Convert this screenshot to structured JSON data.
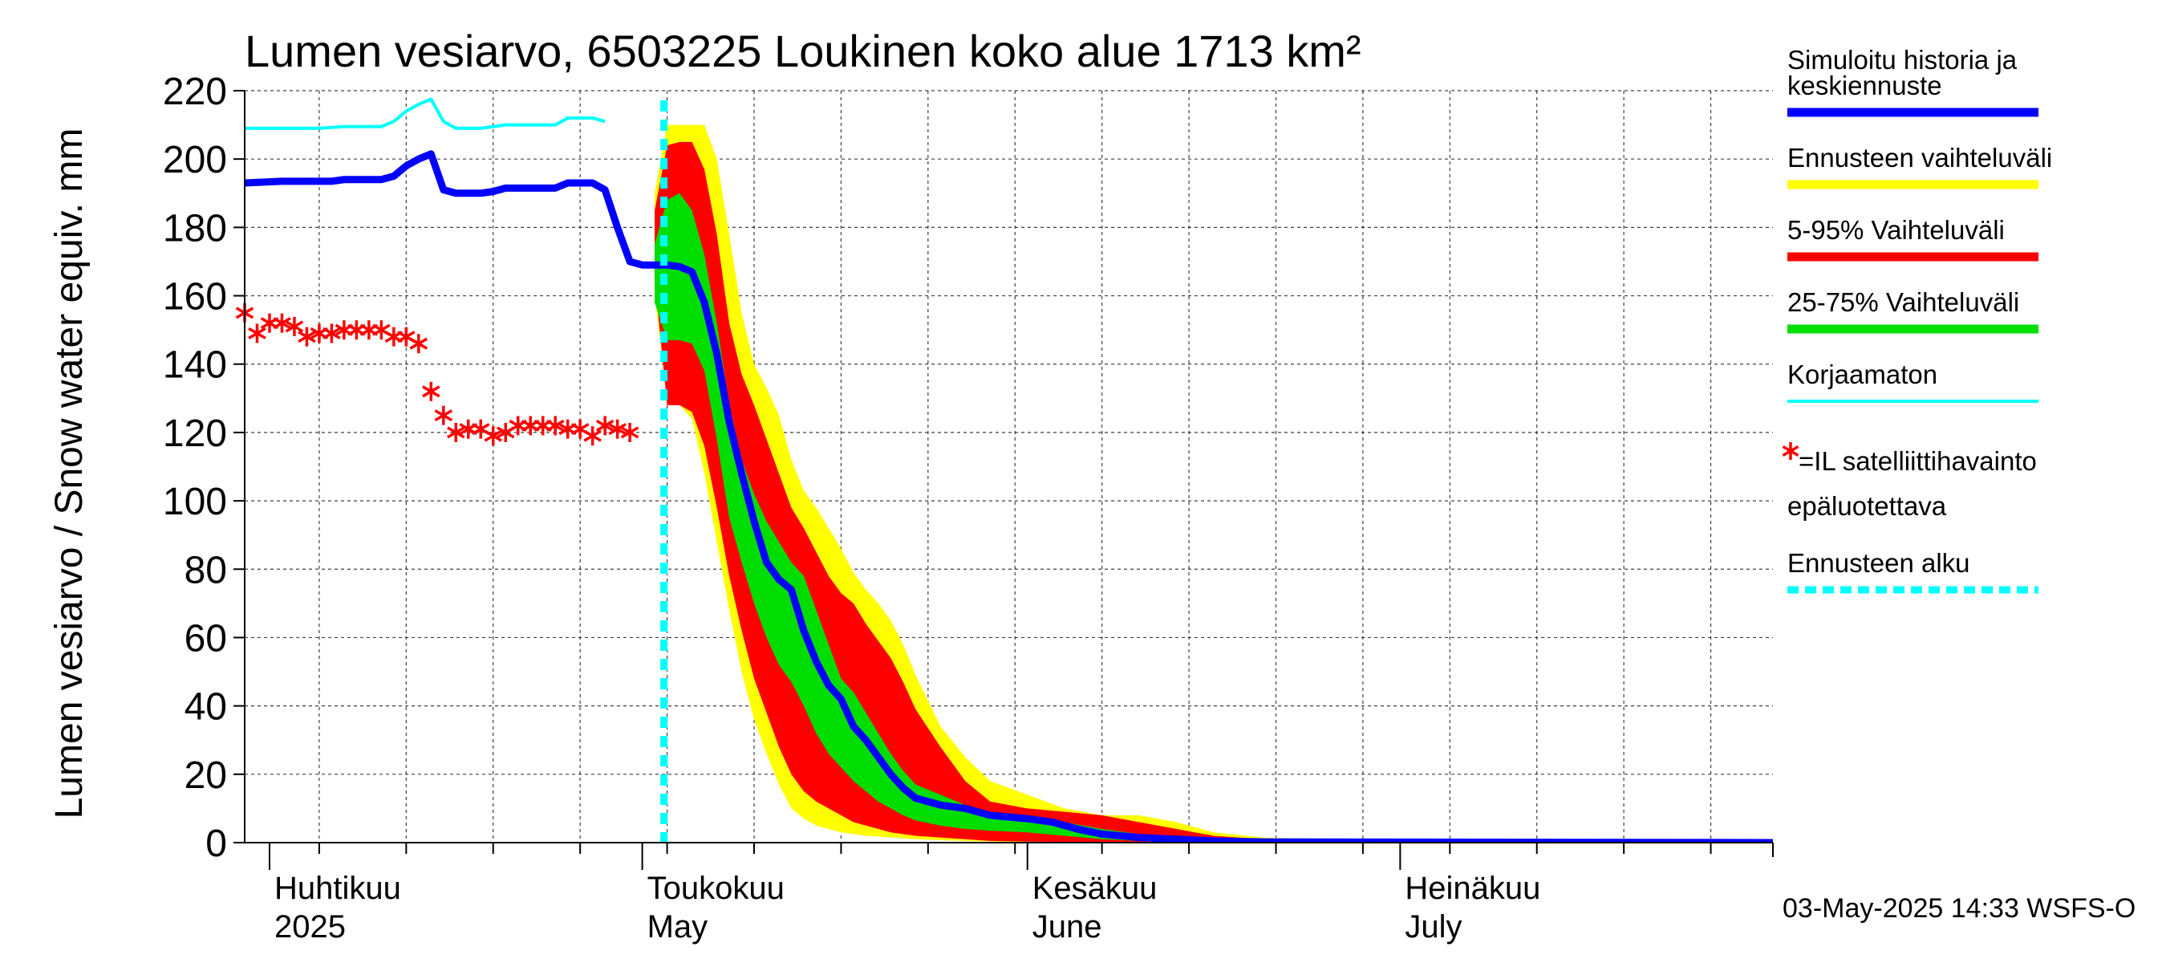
{
  "chart_data": {
    "type": "area",
    "title": "Lumen vesiarvo, 6503225 Loukinen koko alue 1713 km²",
    "ylabel": "Lumen vesiarvo / Snow water equiv.    mm",
    "ylim": [
      0,
      220
    ],
    "yticks": [
      0,
      20,
      40,
      60,
      80,
      100,
      120,
      140,
      160,
      180,
      200,
      220
    ],
    "xlim": [
      "2025-03-30",
      "2025-07-31"
    ],
    "grid": true,
    "month_labels": [
      {
        "date": "2025-04-01",
        "line1": "Huhtikuu",
        "line2": "2025"
      },
      {
        "date": "2025-05-01",
        "line1": "Toukokuu",
        "line2": "May"
      },
      {
        "date": "2025-06-01",
        "line1": "Kesäkuu",
        "line2": "June"
      },
      {
        "date": "2025-07-01",
        "line1": "Heinäkuu",
        "line2": "July"
      }
    ],
    "forecast_start": "2025-05-03",
    "timestamp": "03-May-2025 14:33 WSFS-O",
    "legend": {
      "placement": "right",
      "entries": [
        {
          "label1": "Simuloitu historia ja",
          "label2": "keskiennuste",
          "color": "#0000ff",
          "style": "thick-line"
        },
        {
          "label1": "Ennusteen vaihteluväli",
          "color": "#ffff00",
          "style": "thick-line"
        },
        {
          "label1": "5-95% Vaihteluväli",
          "color": "#ff0000",
          "style": "thick-line"
        },
        {
          "label1": "25-75% Vaihteluväli",
          "color": "#00dd00",
          "style": "thick-line"
        },
        {
          "label1": "Korjaamaton",
          "color": "#00ffff",
          "style": "thin-line"
        },
        {
          "label1": "=IL satelliittihavainto",
          "label2": "epäluotettava",
          "color": "#ff0000",
          "style": "star"
        },
        {
          "label1": "Ennusteen alku",
          "color": "#00ffff",
          "style": "dashed-line"
        }
      ]
    },
    "series": [
      {
        "name": "Simuloitu historia ja keskiennuste",
        "color": "#0000ff",
        "points": [
          [
            "2025-03-30",
            193
          ],
          [
            "2025-04-02",
            193.5
          ],
          [
            "2025-04-05",
            193.5
          ],
          [
            "2025-04-06",
            193.5
          ],
          [
            "2025-04-07",
            194
          ],
          [
            "2025-04-09",
            194
          ],
          [
            "2025-04-10",
            194
          ],
          [
            "2025-04-11",
            195
          ],
          [
            "2025-04-12",
            198
          ],
          [
            "2025-04-13",
            200
          ],
          [
            "2025-04-14",
            201.5
          ],
          [
            "2025-04-15",
            191
          ],
          [
            "2025-04-16",
            190
          ],
          [
            "2025-04-17",
            190
          ],
          [
            "2025-04-18",
            190
          ],
          [
            "2025-04-19",
            190.5
          ],
          [
            "2025-04-20",
            191.5
          ],
          [
            "2025-04-22",
            191.5
          ],
          [
            "2025-04-24",
            191.5
          ],
          [
            "2025-04-25",
            193
          ],
          [
            "2025-04-27",
            193
          ],
          [
            "2025-04-28",
            191
          ],
          [
            "2025-04-29",
            180
          ],
          [
            "2025-04-30",
            170
          ],
          [
            "2025-05-01",
            169
          ],
          [
            "2025-05-02",
            169
          ],
          [
            "2025-05-03",
            169
          ],
          [
            "2025-05-04",
            168.5
          ],
          [
            "2025-05-05",
            167
          ],
          [
            "2025-05-06",
            158
          ],
          [
            "2025-05-07",
            143
          ],
          [
            "2025-05-08",
            123
          ],
          [
            "2025-05-09",
            108
          ],
          [
            "2025-05-10",
            94
          ],
          [
            "2025-05-11",
            82
          ],
          [
            "2025-05-12",
            77
          ],
          [
            "2025-05-13",
            74
          ],
          [
            "2025-05-14",
            62
          ],
          [
            "2025-05-15",
            53
          ],
          [
            "2025-05-16",
            46
          ],
          [
            "2025-05-17",
            42
          ],
          [
            "2025-05-18",
            34
          ],
          [
            "2025-05-19",
            30
          ],
          [
            "2025-05-20",
            25
          ],
          [
            "2025-05-21",
            20
          ],
          [
            "2025-05-22",
            16
          ],
          [
            "2025-05-23",
            13
          ],
          [
            "2025-05-25",
            11
          ],
          [
            "2025-05-27",
            10
          ],
          [
            "2025-05-29",
            8
          ],
          [
            "2025-06-01",
            7
          ],
          [
            "2025-06-03",
            6
          ],
          [
            "2025-06-05",
            4
          ],
          [
            "2025-06-07",
            2.5
          ],
          [
            "2025-06-10",
            1.5
          ],
          [
            "2025-06-13",
            1
          ],
          [
            "2025-06-16",
            0.5
          ],
          [
            "2025-06-20",
            0.2
          ],
          [
            "2025-07-31",
            0
          ]
        ]
      },
      {
        "name": "Korjaamaton",
        "color": "#00ffff",
        "points": [
          [
            "2025-03-30",
            209
          ],
          [
            "2025-04-01",
            209
          ],
          [
            "2025-04-03",
            209
          ],
          [
            "2025-04-05",
            209
          ],
          [
            "2025-04-07",
            209.5
          ],
          [
            "2025-04-10",
            209.5
          ],
          [
            "2025-04-11",
            211
          ],
          [
            "2025-04-12",
            214
          ],
          [
            "2025-04-13",
            216
          ],
          [
            "2025-04-14",
            217.5
          ],
          [
            "2025-04-15",
            211
          ],
          [
            "2025-04-16",
            209
          ],
          [
            "2025-04-18",
            209
          ],
          [
            "2025-04-20",
            210
          ],
          [
            "2025-04-23",
            210
          ],
          [
            "2025-04-24",
            210
          ],
          [
            "2025-04-25",
            212
          ],
          [
            "2025-04-27",
            212
          ],
          [
            "2025-04-28",
            211
          ]
        ]
      }
    ],
    "bands": [
      {
        "name": "Ennusteen vaihteluväli",
        "color": "#ffff00",
        "x": [
          "2025-05-02",
          "2025-05-03",
          "2025-05-04",
          "2025-05-05",
          "2025-05-06",
          "2025-05-07",
          "2025-05-08",
          "2025-05-09",
          "2025-05-10",
          "2025-05-11",
          "2025-05-12",
          "2025-05-13",
          "2025-05-14",
          "2025-05-15",
          "2025-05-16",
          "2025-05-17",
          "2025-05-18",
          "2025-05-19",
          "2025-05-20",
          "2025-05-21",
          "2025-05-22",
          "2025-05-23",
          "2025-05-25",
          "2025-05-27",
          "2025-05-29",
          "2025-06-01",
          "2025-06-04",
          "2025-06-07",
          "2025-06-10",
          "2025-06-13",
          "2025-06-16",
          "2025-06-20",
          "2025-06-25",
          "2025-07-01",
          "2025-07-31"
        ],
        "upper": [
          190,
          210,
          210,
          210,
          210,
          200,
          178,
          155,
          140,
          133,
          125,
          112,
          103,
          98,
          92,
          86,
          79,
          74,
          70,
          65,
          58,
          49,
          34,
          25,
          18,
          14,
          10,
          8,
          8,
          6,
          3,
          1.5,
          1,
          0.3,
          0
        ],
        "lower": [
          160,
          130,
          128,
          124,
          108,
          88,
          68,
          50,
          36,
          26,
          17,
          10,
          7,
          5,
          4,
          3,
          2.5,
          2,
          1.8,
          1.5,
          1.2,
          1,
          0.7,
          0.5,
          0.3,
          0.2,
          0.1,
          0.05,
          0,
          0,
          0,
          0,
          0,
          0,
          0
        ]
      },
      {
        "name": "5-95% Vaihteluväli",
        "color": "#ff0000",
        "x": [
          "2025-05-02",
          "2025-05-03",
          "2025-05-04",
          "2025-05-05",
          "2025-05-06",
          "2025-05-07",
          "2025-05-08",
          "2025-05-09",
          "2025-05-10",
          "2025-05-11",
          "2025-05-12",
          "2025-05-13",
          "2025-05-14",
          "2025-05-15",
          "2025-05-16",
          "2025-05-17",
          "2025-05-18",
          "2025-05-19",
          "2025-05-20",
          "2025-05-21",
          "2025-05-22",
          "2025-05-23",
          "2025-05-25",
          "2025-05-27",
          "2025-05-29",
          "2025-06-01",
          "2025-06-04",
          "2025-06-07",
          "2025-06-10",
          "2025-06-13",
          "2025-06-16",
          "2025-06-20",
          "2025-06-25",
          "2025-07-01",
          "2025-07-31"
        ],
        "upper": [
          185,
          204,
          205,
          205,
          197,
          178,
          152,
          137,
          128,
          118,
          108,
          98,
          92,
          85,
          78,
          73,
          70,
          64,
          59,
          54,
          47,
          39,
          28,
          18,
          12,
          10,
          9,
          8,
          6,
          4,
          2,
          1,
          0.5,
          0.2,
          0
        ],
        "lower": [
          165,
          128,
          128,
          126,
          116,
          98,
          78,
          62,
          48,
          38,
          28,
          20,
          15,
          12,
          10,
          8,
          6,
          5,
          4,
          3,
          2.5,
          2,
          1.5,
          1,
          0.5,
          0.3,
          0.2,
          0.1,
          0,
          0,
          0,
          0,
          0,
          0,
          0
        ]
      },
      {
        "name": "25-75% Vaihteluväli",
        "color": "#00dd00",
        "x": [
          "2025-05-02",
          "2025-05-03",
          "2025-05-04",
          "2025-05-05",
          "2025-05-06",
          "2025-05-07",
          "2025-05-08",
          "2025-05-09",
          "2025-05-10",
          "2025-05-11",
          "2025-05-12",
          "2025-05-13",
          "2025-05-14",
          "2025-05-15",
          "2025-05-16",
          "2025-05-17",
          "2025-05-18",
          "2025-05-19",
          "2025-05-20",
          "2025-05-21",
          "2025-05-22",
          "2025-05-23",
          "2025-05-25",
          "2025-05-27",
          "2025-05-29",
          "2025-06-01",
          "2025-06-04",
          "2025-06-07",
          "2025-06-10",
          "2025-06-13",
          "2025-06-16",
          "2025-06-20",
          "2025-06-25",
          "2025-07-01",
          "2025-07-31"
        ],
        "upper": [
          175,
          188,
          190,
          185,
          172,
          152,
          128,
          112,
          102,
          94,
          88,
          82,
          78,
          68,
          58,
          48,
          44,
          38,
          32,
          26,
          21,
          17,
          14,
          11,
          9,
          8,
          6,
          4,
          2.5,
          1.5,
          0.8,
          0.3,
          0.1,
          0,
          0
        ],
        "lower": [
          158,
          147,
          147,
          146,
          138,
          118,
          95,
          82,
          70,
          60,
          52,
          47,
          40,
          32,
          26,
          22,
          18,
          15,
          12,
          10,
          8,
          6.5,
          5,
          4,
          3.5,
          3,
          2,
          1,
          0.5,
          0.2,
          0.1,
          0,
          0,
          0,
          0
        ]
      }
    ],
    "observations": {
      "name": "=IL satelliittihavainto epäluotettava",
      "color": "#ff0000",
      "points": [
        [
          "2025-03-30",
          155
        ],
        [
          "2025-03-31",
          149
        ],
        [
          "2025-04-01",
          152
        ],
        [
          "2025-04-02",
          152
        ],
        [
          "2025-04-03",
          151
        ],
        [
          "2025-04-04",
          148
        ],
        [
          "2025-04-05",
          149
        ],
        [
          "2025-04-06",
          149
        ],
        [
          "2025-04-07",
          150
        ],
        [
          "2025-04-08",
          150
        ],
        [
          "2025-04-09",
          150
        ],
        [
          "2025-04-10",
          150
        ],
        [
          "2025-04-11",
          148
        ],
        [
          "2025-04-12",
          148
        ],
        [
          "2025-04-13",
          146
        ],
        [
          "2025-04-14",
          132
        ],
        [
          "2025-04-15",
          125
        ],
        [
          "2025-04-16",
          120
        ],
        [
          "2025-04-17",
          121
        ],
        [
          "2025-04-18",
          121
        ],
        [
          "2025-04-19",
          119
        ],
        [
          "2025-04-20",
          120
        ],
        [
          "2025-04-21",
          122
        ],
        [
          "2025-04-22",
          122
        ],
        [
          "2025-04-23",
          122
        ],
        [
          "2025-04-24",
          122
        ],
        [
          "2025-04-25",
          121
        ],
        [
          "2025-04-26",
          121
        ],
        [
          "2025-04-27",
          119
        ],
        [
          "2025-04-28",
          122
        ],
        [
          "2025-04-29",
          121
        ],
        [
          "2025-04-30",
          120
        ]
      ]
    }
  }
}
